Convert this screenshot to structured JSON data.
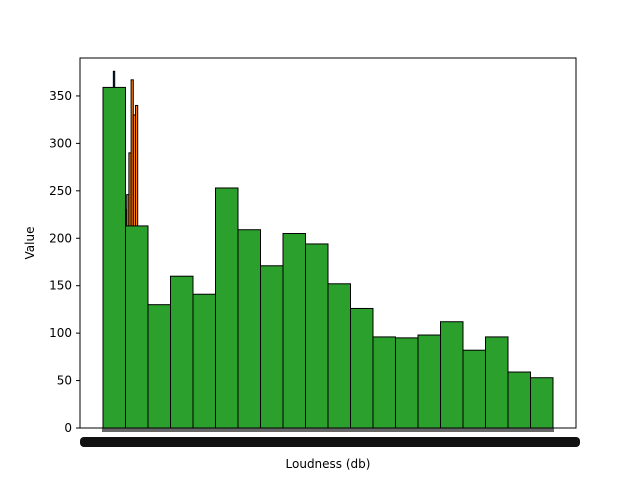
{
  "chart_data": {
    "type": "bar",
    "xlabel": "Loudness (db)",
    "ylabel": "Value",
    "ylim": [
      0,
      390
    ],
    "yticks": [
      0,
      50,
      100,
      150,
      200,
      250,
      300,
      350
    ],
    "grid": false,
    "legend": "none",
    "series": [
      {
        "color": "#1f77b4",
        "values": [
          120,
          376,
          110,
          95,
          80,
          100
        ]
      },
      {
        "color": "#ff7f0e",
        "values": [
          230,
          246,
          290,
          367,
          330,
          340
        ]
      },
      {
        "color": "#2ca02c",
        "values": [
          359,
          213,
          130,
          160,
          141,
          253,
          209,
          171,
          205,
          194,
          152,
          126,
          96,
          95,
          98,
          112,
          82,
          96,
          59,
          53
        ]
      }
    ]
  }
}
